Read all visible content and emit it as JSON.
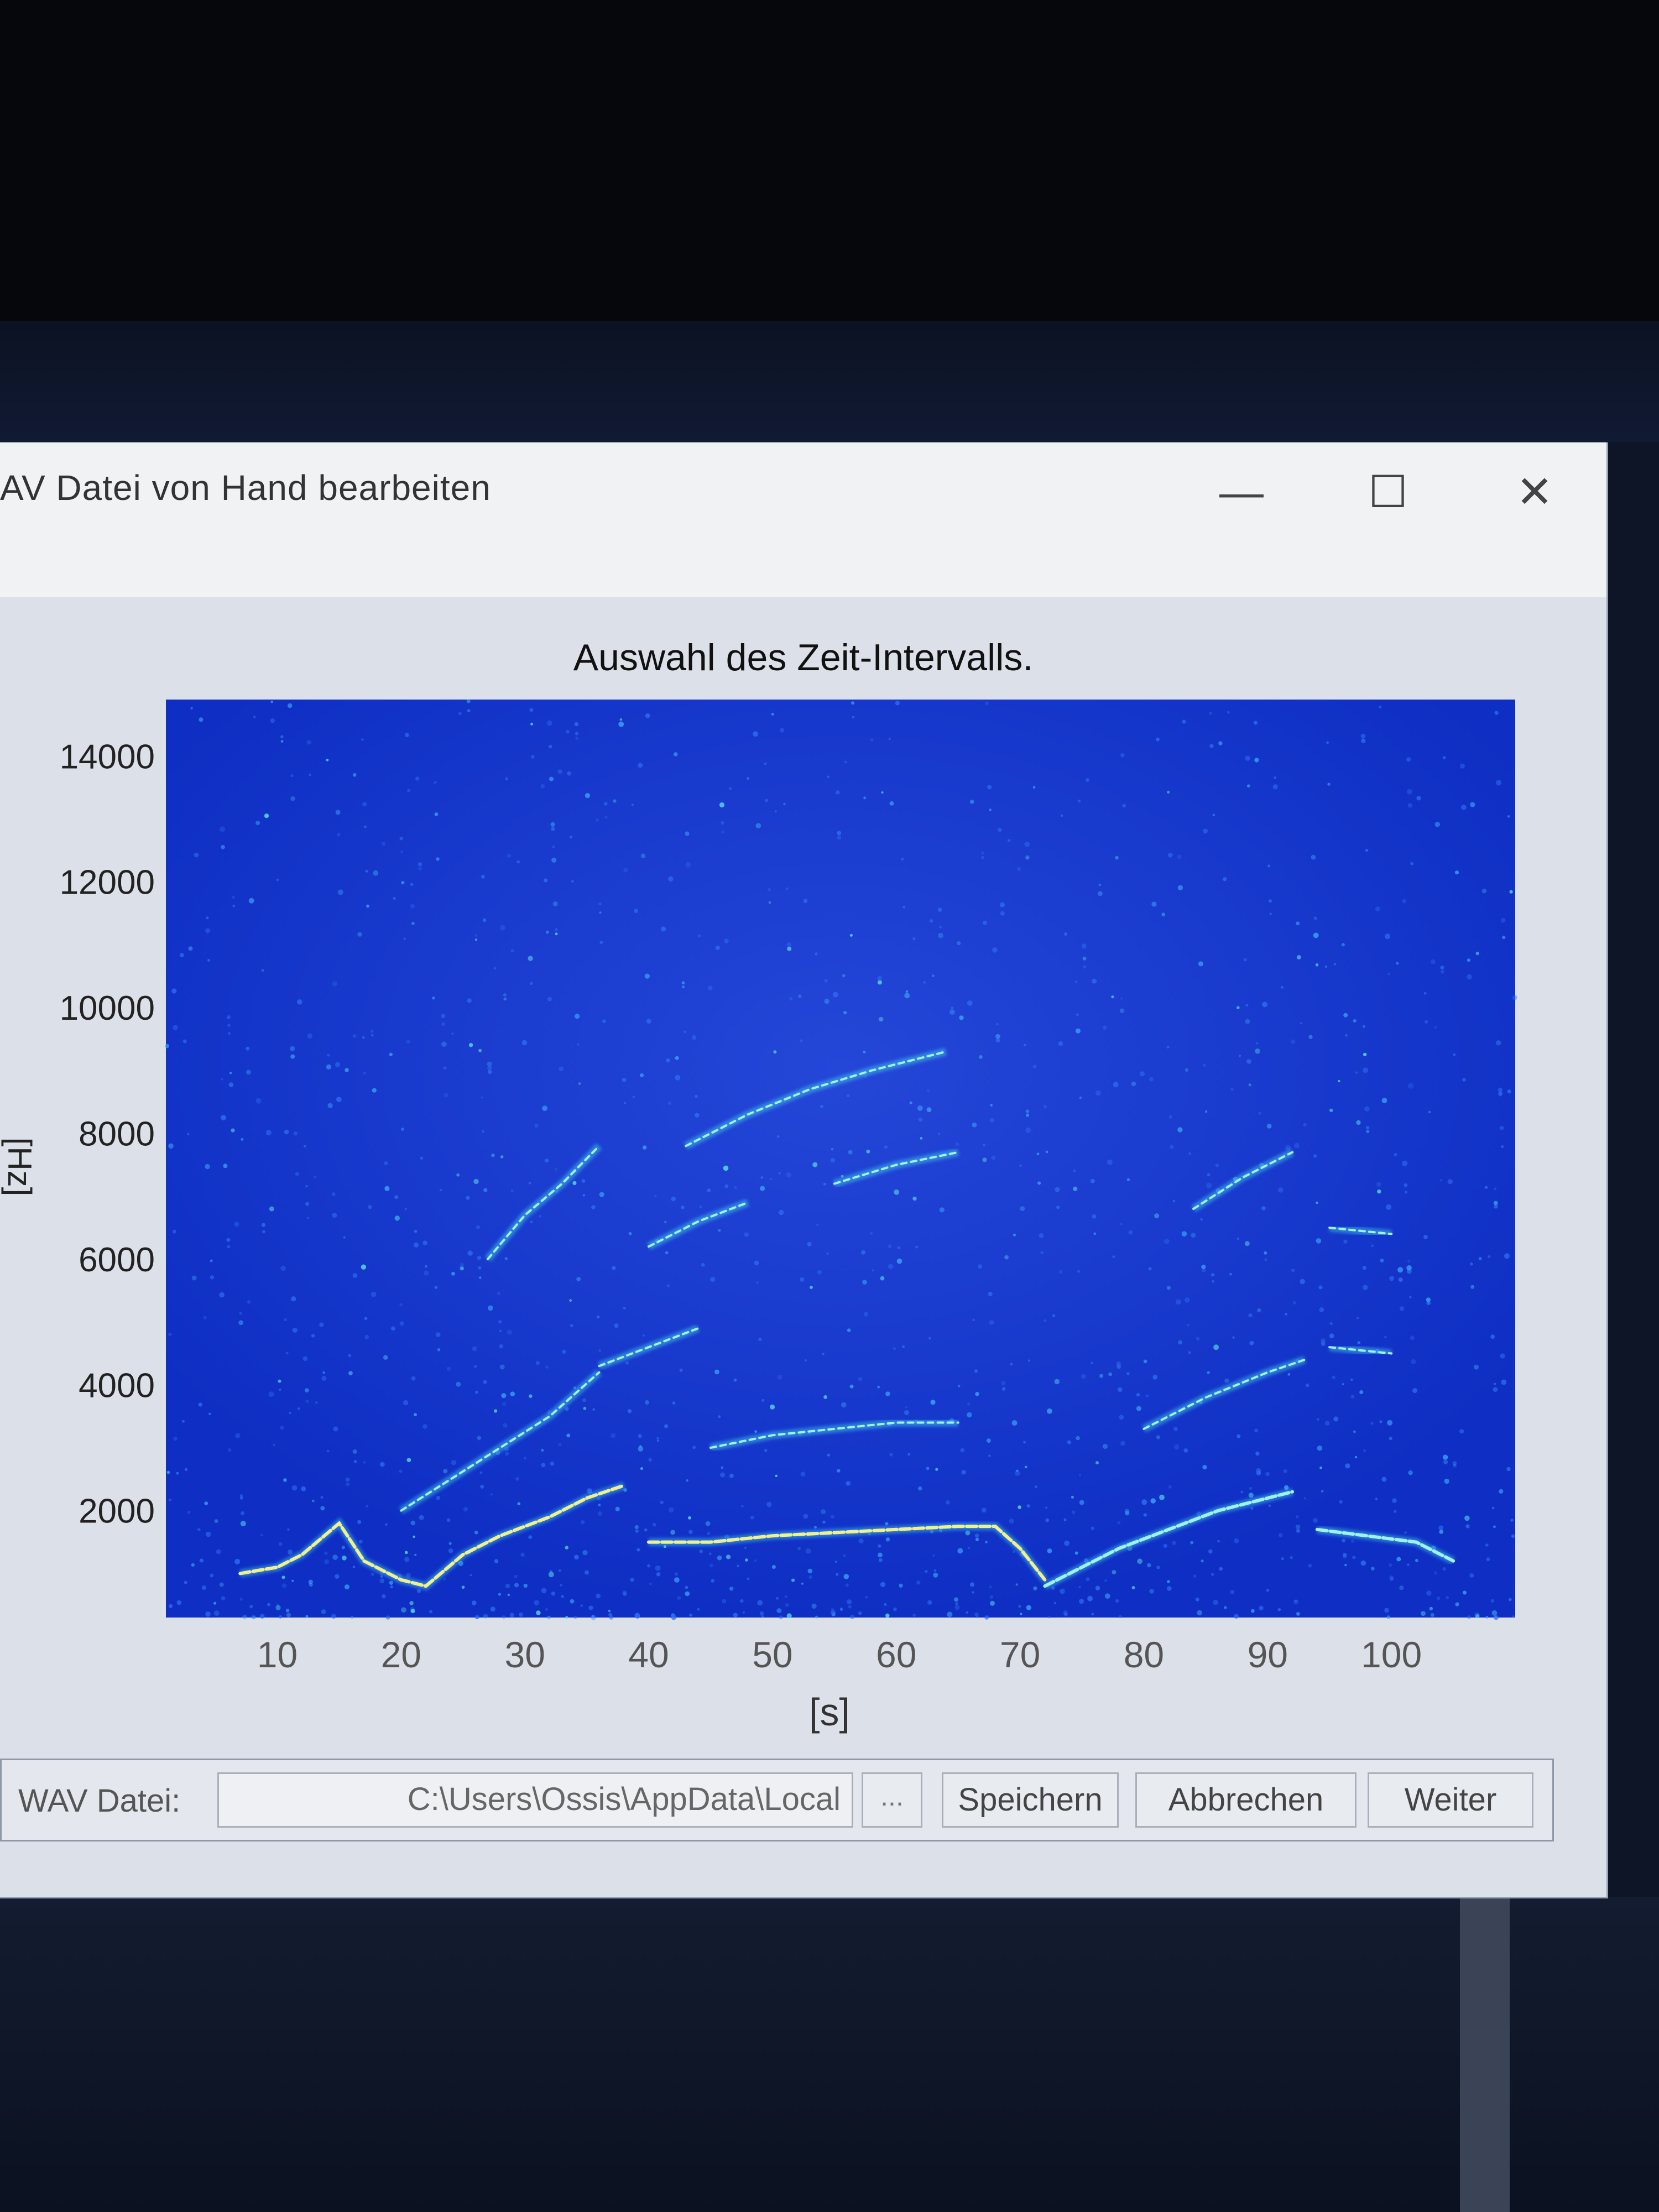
{
  "window": {
    "title": "AV Datei von Hand bearbeiten",
    "minimize_glyph": "—",
    "maximize_glyph": "☐",
    "close_glyph": "✕"
  },
  "plot": {
    "title": "Auswahl des Zeit-Intervalls.",
    "xlabel": "[s]",
    "ylabel": "[Hz]",
    "x_ticks": [
      "10",
      "20",
      "30",
      "40",
      "50",
      "60",
      "70",
      "80",
      "90",
      "100"
    ],
    "y_ticks": [
      "2000",
      "4000",
      "6000",
      "8000",
      "10000",
      "12000",
      "14000"
    ]
  },
  "chart_data": {
    "type": "heatmap",
    "title": "Auswahl des Zeit-Intervalls.",
    "xlabel": "[s]",
    "ylabel": "[Hz]",
    "xlim": [
      1,
      110
    ],
    "ylim": [
      300,
      14900
    ],
    "colormap": "jet",
    "background_color": "#1233cc",
    "traces": [
      {
        "x": [
          7,
          10,
          12,
          15,
          17,
          20,
          22,
          25,
          28,
          32,
          35,
          38
        ],
        "y": [
          1000,
          1100,
          1300,
          1800,
          1200,
          900,
          800,
          1300,
          1600,
          1900,
          2200,
          2400
        ]
      },
      {
        "x": [
          40,
          45,
          50,
          55,
          60,
          65,
          68,
          70,
          72
        ],
        "y": [
          1500,
          1500,
          1600,
          1650,
          1700,
          1750,
          1750,
          1400,
          900
        ]
      },
      {
        "x": [
          72,
          75,
          78,
          82,
          86,
          90,
          92
        ],
        "y": [
          800,
          1100,
          1400,
          1700,
          2000,
          2200,
          2300
        ]
      },
      {
        "x": [
          94,
          98,
          102,
          105
        ],
        "y": [
          1700,
          1600,
          1500,
          1200
        ]
      },
      {
        "x": [
          20,
          24,
          28,
          32,
          36
        ],
        "y": [
          2000,
          2500,
          3000,
          3500,
          4200
        ]
      },
      {
        "x": [
          45,
          50,
          55,
          60,
          65
        ],
        "y": [
          3000,
          3200,
          3300,
          3400,
          3400
        ]
      },
      {
        "x": [
          80,
          85,
          90,
          93
        ],
        "y": [
          3300,
          3800,
          4200,
          4400
        ]
      },
      {
        "x": [
          36,
          40,
          44
        ],
        "y": [
          4300,
          4600,
          4900
        ]
      },
      {
        "x": [
          27,
          30,
          33,
          36
        ],
        "y": [
          6000,
          6700,
          7200,
          7800
        ]
      },
      {
        "x": [
          40,
          44,
          48
        ],
        "y": [
          6200,
          6600,
          6900
        ]
      },
      {
        "x": [
          43,
          48,
          53,
          58,
          64
        ],
        "y": [
          7800,
          8300,
          8700,
          9000,
          9300
        ]
      },
      {
        "x": [
          55,
          60,
          65
        ],
        "y": [
          7200,
          7500,
          7700
        ]
      },
      {
        "x": [
          84,
          88,
          92
        ],
        "y": [
          6800,
          7300,
          7700
        ]
      },
      {
        "x": [
          95,
          100
        ],
        "y": [
          6500,
          6400
        ]
      },
      {
        "x": [
          95,
          100
        ],
        "y": [
          4600,
          4500
        ]
      }
    ]
  },
  "statusbar": {
    "wav_label": "WAV Datei:",
    "wav_path": "C:\\Users\\Ossis\\AppData\\Local",
    "browse_label": "...",
    "save_label": "Speichern",
    "cancel_label": "Abbrechen",
    "next_label": "Weiter"
  }
}
